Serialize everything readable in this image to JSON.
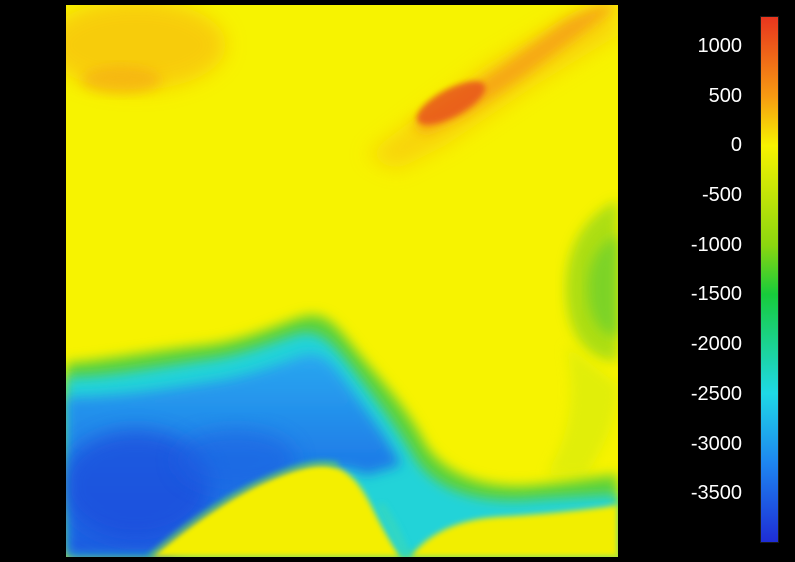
{
  "map": {
    "variable": "elevation / bathymetry",
    "colormap": "jet",
    "features": [
      {
        "kind": "land-highland",
        "description": "orange-red mountain ridge in upper right"
      },
      {
        "kind": "land-highland",
        "description": "orange upland patch in upper left"
      },
      {
        "kind": "shelf",
        "description": "green shallow-water area on right edge"
      },
      {
        "kind": "deep-basin",
        "description": "blue deep basin lower left"
      },
      {
        "kind": "coast",
        "description": "cyan shallow band along southern coast"
      }
    ]
  },
  "colorbar": {
    "min": -4000,
    "max": 1300,
    "stops": [
      {
        "value": 1300,
        "color": "#e8351e"
      },
      {
        "value": 500,
        "color": "#f79a12"
      },
      {
        "value": 0,
        "color": "#f7f300"
      },
      {
        "value": -1000,
        "color": "#8cd60f"
      },
      {
        "value": -1500,
        "color": "#17cc3b"
      },
      {
        "value": -2500,
        "color": "#1fd9e6"
      },
      {
        "value": -3200,
        "color": "#1e86f0"
      },
      {
        "value": -4000,
        "color": "#1e2dd6"
      }
    ],
    "ticks": [
      {
        "value": 1000,
        "label": "1000"
      },
      {
        "value": 500,
        "label": "500"
      },
      {
        "value": 0,
        "label": "0"
      },
      {
        "value": -500,
        "label": "-500"
      },
      {
        "value": -1000,
        "label": "-1000"
      },
      {
        "value": -1500,
        "label": "-1500"
      },
      {
        "value": -2000,
        "label": "-2000"
      },
      {
        "value": -2500,
        "label": "-2500"
      },
      {
        "value": -3000,
        "label": "-3000"
      },
      {
        "value": -3500,
        "label": "-3500"
      }
    ]
  }
}
